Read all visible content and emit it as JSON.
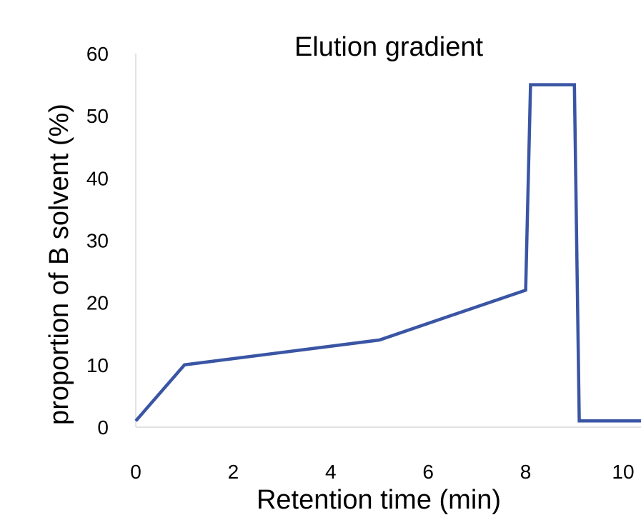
{
  "chart_data": {
    "type": "line",
    "title": "Elution gradient",
    "xlabel": "Retention time (min)",
    "ylabel": "proportion of B solvent (%)",
    "xlim": [
      0,
      10.4
    ],
    "ylim": [
      0,
      60
    ],
    "xticks": [
      0,
      2,
      4,
      6,
      8,
      10
    ],
    "yticks": [
      0,
      10,
      20,
      30,
      40,
      50,
      60
    ],
    "grid": false,
    "legend": "none",
    "series": [
      {
        "color": "#3A55A4",
        "x": [
          0,
          1,
          5,
          8,
          8.1,
          9,
          9.1,
          10.4
        ],
        "y": [
          1,
          10,
          14,
          22,
          55,
          55,
          1,
          1
        ]
      }
    ]
  }
}
